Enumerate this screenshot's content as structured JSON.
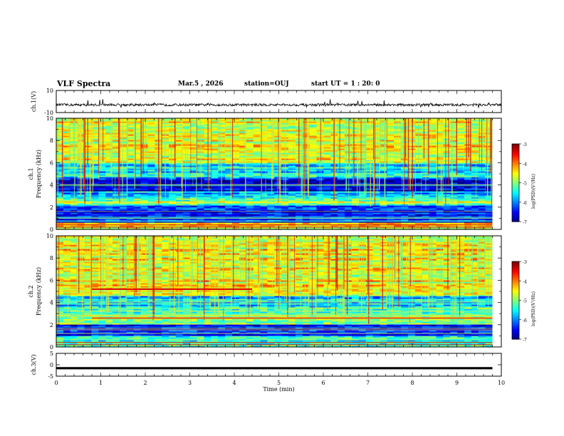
{
  "header": {
    "title": "VLF Spectra",
    "date": "Mar.5 , 2026",
    "station": "station=OUJ",
    "start": "start UT = 1 : 20: 0"
  },
  "colorbar": {
    "label": "log(PSD)(V²/Hz)",
    "ticks": [
      "-3",
      "-4",
      "-5",
      "-6",
      "-7"
    ]
  },
  "chart_data": [
    {
      "type": "line",
      "title": "ch.1(V)",
      "ylabel": "ch.1(V)",
      "ylim": [
        -10,
        10
      ],
      "ytick_labels": [
        "10",
        "-10"
      ],
      "description_value": "waveform near -3 V with spikes",
      "mean": -3
    },
    {
      "type": "heatmap",
      "ylabel": "ch.1 Frequency (kHz)",
      "ylim": [
        0,
        10
      ],
      "ytick_labels": [
        "0",
        "2",
        "4",
        "6",
        "8",
        "10"
      ],
      "xlim": [
        0,
        9.8
      ],
      "colorscale": "jet",
      "zlim": [
        -7,
        -3
      ],
      "bands": [
        {
          "from": 0,
          "to": 0.6,
          "value": -4.2
        },
        {
          "from": 0.6,
          "to": 2.2,
          "value": -6.5
        },
        {
          "from": 2.2,
          "to": 2.8,
          "value": -5.0
        },
        {
          "from": 2.8,
          "to": 3.5,
          "value": -5.8
        },
        {
          "from": 3.5,
          "to": 4.6,
          "value": -6.7
        },
        {
          "from": 4.6,
          "to": 6.0,
          "value": -5.6
        },
        {
          "from": 6.0,
          "to": 10.0,
          "value": -4.6
        }
      ]
    },
    {
      "type": "heatmap",
      "ylabel": "ch.2 Frequency (kHz)",
      "ylim": [
        0,
        10
      ],
      "ytick_labels": [
        "0",
        "2",
        "4",
        "6",
        "8",
        "10"
      ],
      "xlim": [
        0,
        9.8
      ],
      "colorscale": "jet",
      "zlim": [
        -7,
        -3
      ],
      "bands": [
        {
          "from": 0,
          "to": 1.0,
          "value": -5.2
        },
        {
          "from": 1.0,
          "to": 2.0,
          "value": -6.4
        },
        {
          "from": 2.0,
          "to": 3.6,
          "value": -5.0
        },
        {
          "from": 3.6,
          "to": 4.6,
          "value": -5.7
        },
        {
          "from": 4.6,
          "to": 10.0,
          "value": -4.5
        }
      ],
      "lines": [
        {
          "freq": 5.2,
          "t_from": 0.8,
          "t_to": 4.4,
          "value": -3.4
        },
        {
          "freq": 2.6,
          "t_from": 0.8,
          "t_to": 9.8,
          "value": -3.8
        }
      ]
    },
    {
      "type": "line",
      "title": "ch.3(V)",
      "ylabel": "ch.3(V)",
      "ylim": [
        -5,
        5
      ],
      "ytick_labels": [
        "5",
        "0",
        "-5"
      ],
      "mean": -1.5,
      "xlabel": "Time (min)",
      "xlim": [
        0,
        10
      ],
      "xtick_labels": [
        "0",
        "1",
        "2",
        "3",
        "4",
        "5",
        "6",
        "7",
        "8",
        "9",
        "10"
      ]
    }
  ]
}
